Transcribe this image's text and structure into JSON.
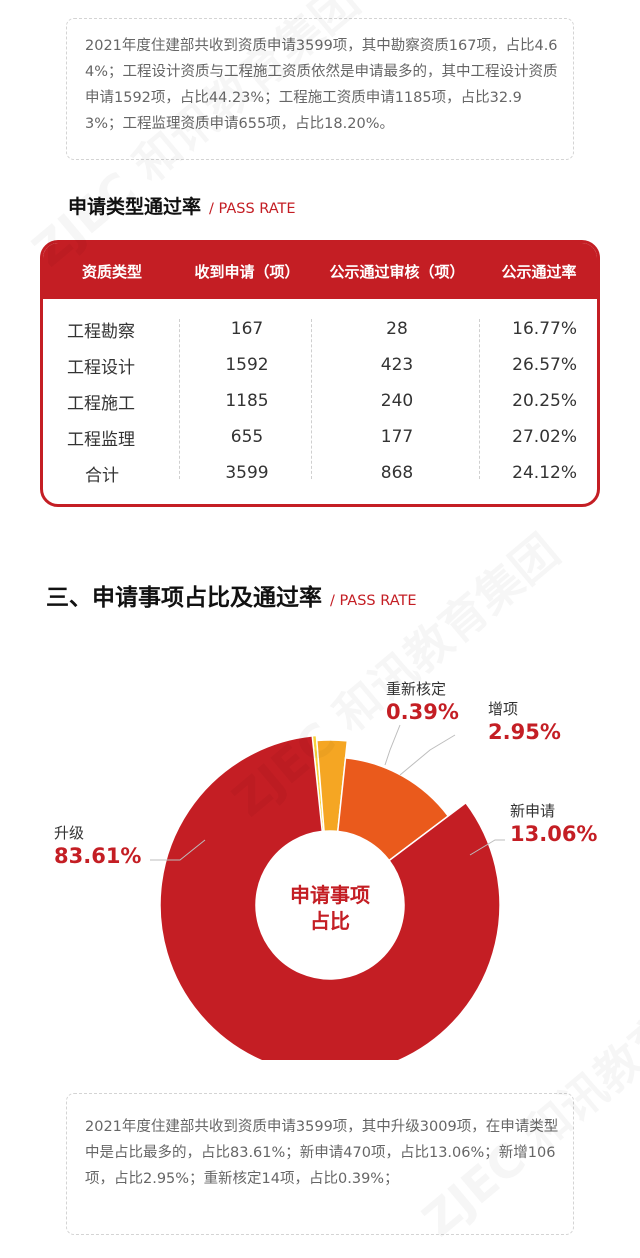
{
  "note1": "2021年度住建部共收到资质申请3599项，其中勘察资质167项，占比4.64%；工程设计资质与工程施工资质依然是申请最多的，其中工程设计资质申请1592项，占比44.23%；工程施工资质申请1185项，占比32.93%；工程监理资质申请655项，占比18.20%。",
  "section1": {
    "title": "申请类型通过率",
    "subtitle": "/ PASS RATE"
  },
  "table": {
    "headers": [
      "资质类型",
      "收到申请（项）",
      "公示通过审核（项）",
      "公示通过率"
    ],
    "rows": [
      {
        "type": "工程勘察",
        "received": "167",
        "passed": "28",
        "rate": "16.77%"
      },
      {
        "type": "工程设计",
        "received": "1592",
        "passed": "423",
        "rate": "26.57%"
      },
      {
        "type": "工程施工",
        "received": "1185",
        "passed": "240",
        "rate": "20.25%"
      },
      {
        "type": "工程监理",
        "received": "655",
        "passed": "177",
        "rate": "27.02%"
      },
      {
        "type": "合计",
        "received": "3599",
        "passed": "868",
        "rate": "24.12%"
      }
    ]
  },
  "section2": {
    "title": "三、申请事项占比及通过率",
    "subtitle": "/ PASS RATE"
  },
  "chart_data": {
    "type": "pie",
    "title": "",
    "center_label": [
      "申请事项",
      "占比"
    ],
    "slices": [
      {
        "name": "升级",
        "value": 83.61,
        "label": "83.61%",
        "color": "#c41e24"
      },
      {
        "name": "新申请",
        "value": 13.06,
        "label": "13.06%",
        "color": "#ea5a1c"
      },
      {
        "name": "增项",
        "value": 2.95,
        "label": "2.95%",
        "color": "#f5a623"
      },
      {
        "name": "重新核定",
        "value": 0.39,
        "label": "0.39%",
        "color": "#f7d23a"
      }
    ]
  },
  "note2": "2021年度住建部共收到资质申请3599项，其中升级3009项，在申请类型中是占比最多的，占比83.61%；新申请470项，占比13.06%；新增106项，占比2.95%；重新核定14项，占比0.39%；",
  "watermark": "ZJEC 和讯教育集团"
}
